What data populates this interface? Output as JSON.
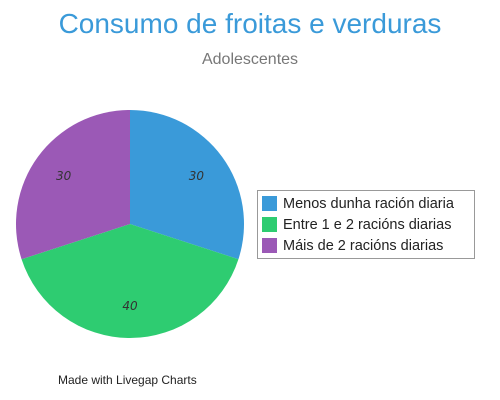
{
  "chart_data": {
    "type": "pie",
    "title": "Consumo de froitas e verduras",
    "subtitle": "Adolescentes",
    "categories": [
      "Menos dunha ración diaria",
      "Entre 1 e 2 racións diarias",
      "Máis de 2 racións diarias"
    ],
    "values": [
      30,
      40,
      30
    ],
    "colors": [
      "#3a9ad9",
      "#2ecc71",
      "#9b59b6"
    ],
    "data_labels": [
      "30",
      "40",
      "30"
    ],
    "legend_position": "right",
    "start_angle": "top, clockwise"
  },
  "credit": "Made with Livegap Charts"
}
